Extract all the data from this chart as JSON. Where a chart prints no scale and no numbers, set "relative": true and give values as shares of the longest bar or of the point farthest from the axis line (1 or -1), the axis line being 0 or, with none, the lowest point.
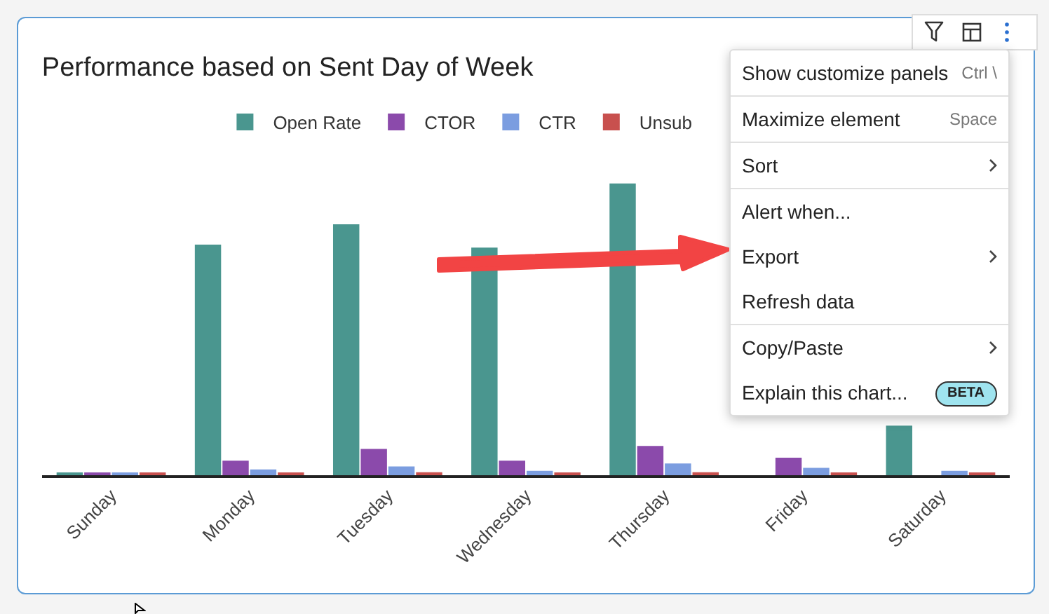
{
  "chart_data": {
    "type": "bar",
    "title": "Performance based on Sent Day of Week",
    "relative": true,
    "legend": "top",
    "grid": false,
    "categories": [
      "Sunday",
      "Monday",
      "Tuesday",
      "Wednesday",
      "Thursday",
      "Friday",
      "Saturday"
    ],
    "series": [
      {
        "name": "Open Rate",
        "color": "#4a968f",
        "values": [
          0.005,
          0.79,
          0.86,
          0.78,
          1,
          null,
          0.17
        ]
      },
      {
        "name": "CTOR",
        "color": "#8b4aab",
        "values": [
          0.005,
          0.05,
          0.09,
          0.05,
          0.1,
          0.06,
          null
        ]
      },
      {
        "name": "CTR",
        "color": "#7b9de0",
        "values": [
          0.005,
          0.02,
          0.03,
          0.015,
          0.04,
          0.025,
          0.015
        ]
      },
      {
        "name": "Unsub",
        "color": "#c8504e",
        "values": [
          0.005,
          0.005,
          0.01,
          0.005,
          0.01,
          0.005,
          0.005
        ]
      }
    ],
    "annotations": [
      "Show customize panels",
      "Ctrl \\",
      "Maximize element",
      "Space",
      "Sort",
      "Alert when...",
      "Export",
      "Refresh data",
      "Copy/Paste",
      "Explain this chart...",
      "BETA"
    ]
  }
}
